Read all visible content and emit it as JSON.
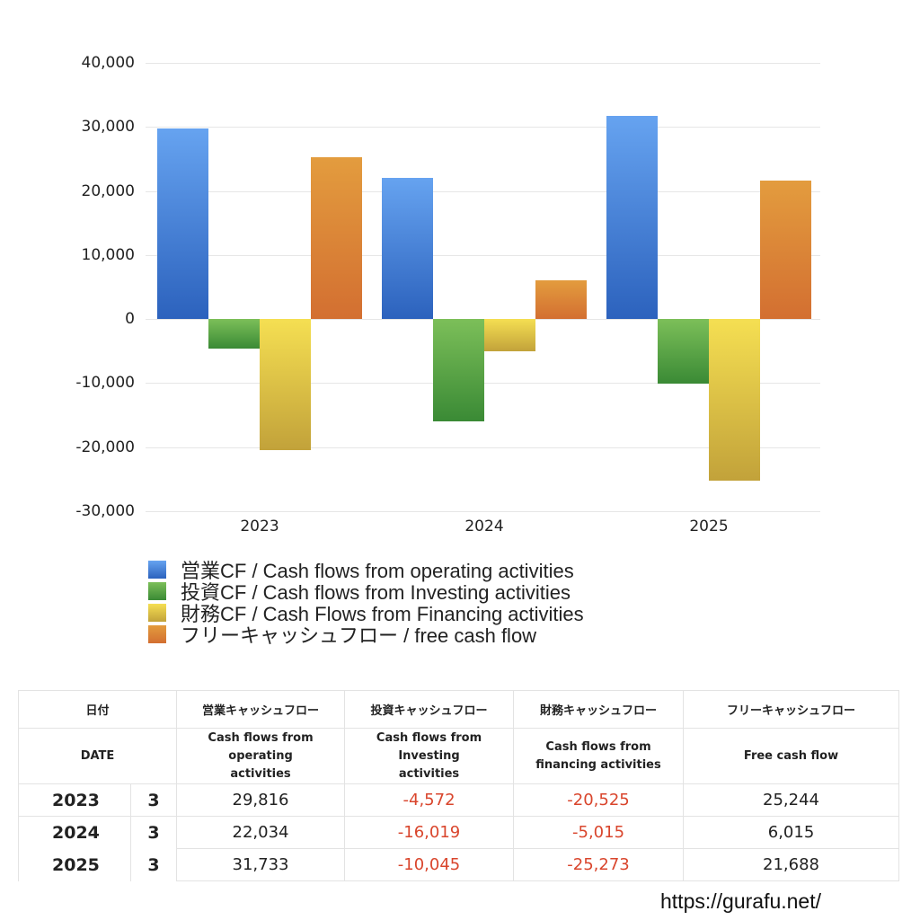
{
  "chart_data": {
    "type": "bar",
    "title": "",
    "xlabel": "",
    "ylabel": "",
    "categories": [
      "2023",
      "2024",
      "2025"
    ],
    "ylim": [
      -30000,
      40000
    ],
    "yticks": [
      40000,
      30000,
      20000,
      10000,
      0,
      -10000,
      -20000,
      -30000
    ],
    "ytick_labels": [
      "40,000",
      "30,000",
      "20,000",
      "10,000",
      "0",
      "-10,000",
      "-20,000",
      "-30,000"
    ],
    "grid": true,
    "legend_position": "bottom",
    "series": [
      {
        "name": "営業CF / Cash flows from operating activities",
        "color": "#4a86d8",
        "values": [
          29816,
          22034,
          31733
        ]
      },
      {
        "name": "投資CF / Cash flows from Investing activities",
        "color": "#5aa347",
        "values": [
          -4572,
          -16019,
          -10045
        ]
      },
      {
        "name": "財務CF / Cash Flows from Financing activities",
        "color": "#dcc448",
        "values": [
          -20525,
          -5015,
          -25273
        ]
      },
      {
        "name": "フリーキャッシュフロー / free cash flow",
        "color": "#db8538",
        "values": [
          25244,
          6015,
          21688
        ]
      }
    ]
  },
  "legend": {
    "items": [
      {
        "label": "営業CF / Cash flows from operating activities"
      },
      {
        "label": "投資CF / Cash flows from Investing activities"
      },
      {
        "label": "財務CF / Cash Flows from Financing activities"
      },
      {
        "label": "フリーキャッシュフロー / free cash flow"
      }
    ]
  },
  "table": {
    "headers_jp": [
      "日付",
      "営業キャッシュフロー",
      "投資キャッシュフロー",
      "財務キャッシュフロー",
      "フリーキャッシュフロー"
    ],
    "headers_en": [
      "DATE",
      "Cash flows from operating activities",
      "Cash flows from Investing activities",
      "Cash flows from financing activities",
      "Free cash flow"
    ],
    "rows": [
      {
        "year": "2023",
        "month": "3",
        "operating": "29,816",
        "investing": "-4,572",
        "financing": "-20,525",
        "free": "25,244"
      },
      {
        "year": "2024",
        "month": "3",
        "operating": "22,034",
        "investing": "-16,019",
        "financing": "-5,015",
        "free": "6,015"
      },
      {
        "year": "2025",
        "month": "3",
        "operating": "31,733",
        "investing": "-10,045",
        "financing": "-25,273",
        "free": "21,688"
      }
    ]
  },
  "footer": {
    "url": "https://gurafu.net/"
  },
  "colors": {
    "negative": "#d9452c",
    "grid": "#e6e6e6"
  }
}
